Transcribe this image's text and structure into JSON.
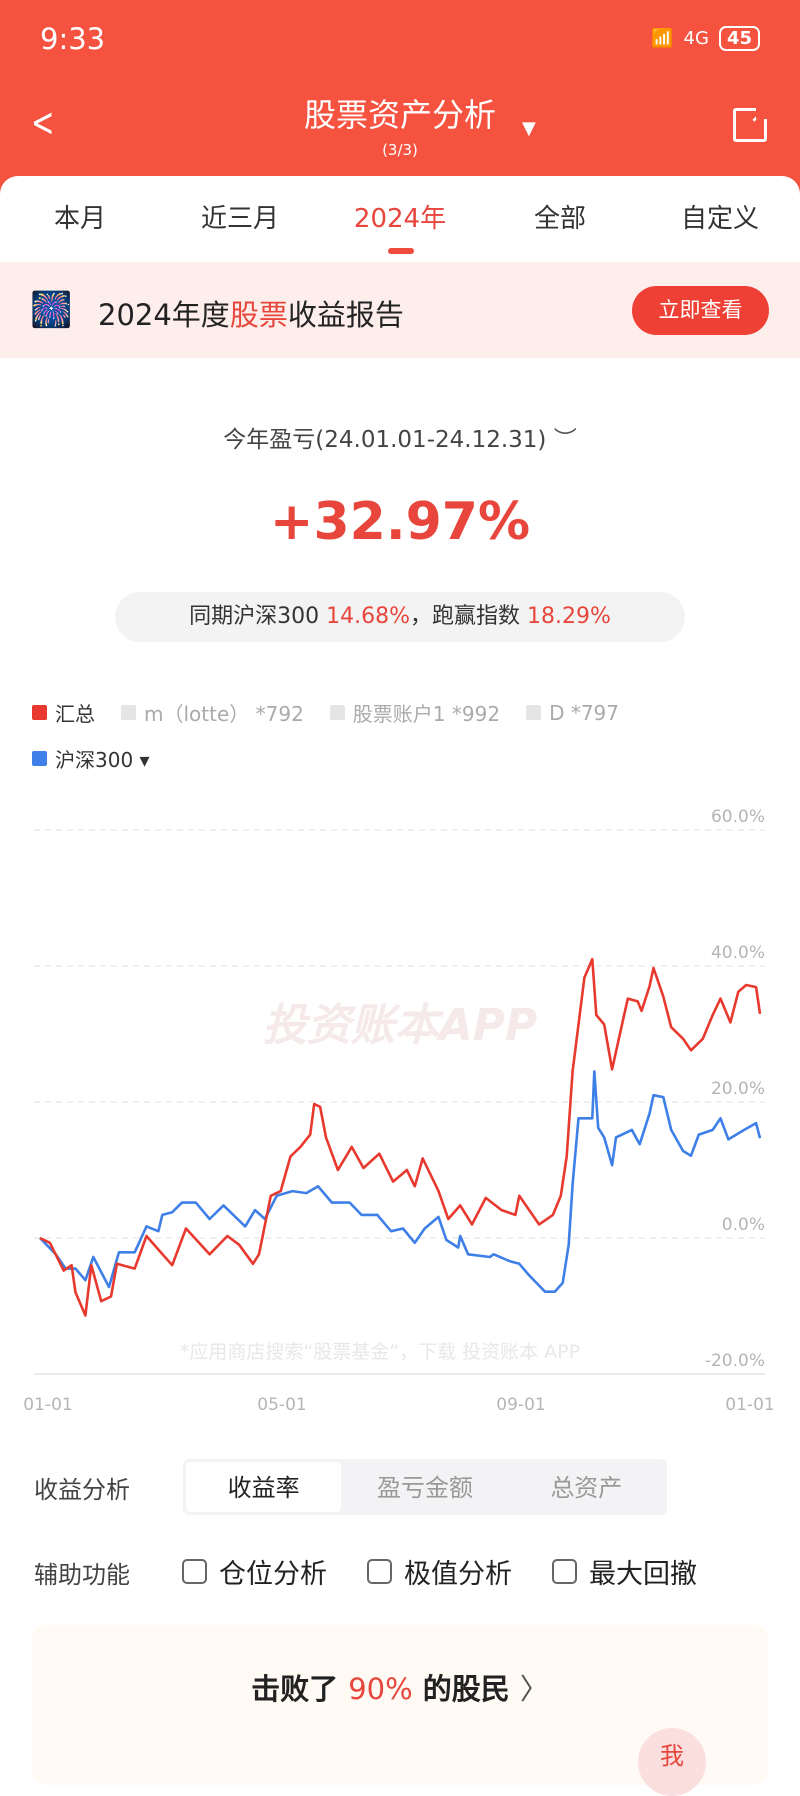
{
  "status": {
    "time": "9:33",
    "network": "4G",
    "battery": "45"
  },
  "header": {
    "title": "股票资产分析",
    "subtitle": "(3/3)"
  },
  "tabs": [
    "本月",
    "近三月",
    "2024年",
    "全部",
    "自定义"
  ],
  "banner": {
    "pre": "2024年度",
    "hl": "股票",
    "post": "收益报告",
    "button": "立即查看"
  },
  "summary": {
    "period": "今年盈亏(24.01.01-24.12.31)",
    "value": "+32.97%",
    "cmp_pre": "同期沪深300",
    "cmp_val": "14.68%",
    "cmp_mid": "，跑赢指数",
    "cmp_val2": "18.29%"
  },
  "legend": [
    {
      "name": "汇总",
      "color": "#e8392f",
      "active": true
    },
    {
      "name": "m（lotte） *792",
      "color": "#e5e5e5",
      "active": false
    },
    {
      "name": "股票账户1 *992",
      "color": "#e5e5e5",
      "active": false
    },
    {
      "name": "D *797",
      "color": "#e5e5e5",
      "active": false
    },
    {
      "name": "沪深300 ▾",
      "color": "#3f7fe8",
      "active": true
    }
  ],
  "watermark": "投资账本APP",
  "footnote": "*应用商店搜索“股票基金”，下载 投资账本 APP",
  "chart_data": {
    "type": "line",
    "ylim": [
      -20,
      60
    ],
    "yticks": [
      "60.0%",
      "40.0%",
      "20.0%",
      "0.0%",
      "-20.0%"
    ],
    "ytick_values": [
      60,
      40,
      20,
      0,
      -20
    ],
    "xticks": [
      "01-01",
      "05-01",
      "09-01",
      "01-01"
    ],
    "grid": true,
    "series": [
      {
        "name": "汇总",
        "color": "#e8392f",
        "x": [
          "01-01",
          "01-06",
          "01-13",
          "01-17",
          "01-19",
          "01-24",
          "01-27",
          "02-01",
          "02-06",
          "02-09",
          "02-18",
          "02-24",
          "03-01",
          "03-08",
          "03-15",
          "03-27",
          "04-05",
          "04-11",
          "04-18",
          "04-21",
          "04-27",
          "05-02",
          "05-07",
          "05-12",
          "05-17",
          "05-19",
          "05-22",
          "05-25",
          "05-31",
          "06-07",
          "06-13",
          "06-21",
          "06-28",
          "07-05",
          "07-09",
          "07-13",
          "07-21",
          "07-26",
          "08-01",
          "08-07",
          "08-14",
          "08-22",
          "08-29",
          "08-31",
          "09-05",
          "09-10",
          "09-17",
          "09-21",
          "09-24",
          "09-27",
          "10-03",
          "10-07",
          "10-09",
          "10-13",
          "10-17",
          "10-21",
          "10-25",
          "10-30",
          "11-01",
          "11-05",
          "11-07",
          "11-12",
          "11-16",
          "11-22",
          "11-26",
          "12-02",
          "12-07",
          "12-11",
          "12-16",
          "12-20",
          "12-24",
          "12-29",
          "12-31"
        ],
        "values": [
          0,
          -0.7,
          -4.8,
          -4,
          -8,
          -11.4,
          -4,
          -9.3,
          -8.6,
          -3.8,
          -4.5,
          0.3,
          -1.7,
          -4,
          1.4,
          -2.4,
          0.3,
          -1,
          -3.8,
          -2.4,
          6.2,
          6.9,
          12,
          13.4,
          15.2,
          19.7,
          19.3,
          14.8,
          10,
          13.4,
          10.3,
          12.4,
          8.3,
          10,
          7.6,
          11.7,
          6.9,
          2.8,
          4.8,
          2,
          5.9,
          4.1,
          3.4,
          6.2,
          4.1,
          2,
          3.4,
          6.2,
          12,
          24.5,
          38.3,
          41,
          32.8,
          31.4,
          24.8,
          30,
          35.2,
          34.8,
          33.4,
          37,
          39.7,
          35.5,
          31,
          29.3,
          27.6,
          29.3,
          32.8,
          35.2,
          31.7,
          36.2,
          37.2,
          36.9,
          32.97
        ]
      },
      {
        "name": "沪深300",
        "color": "#3f7fe8",
        "x": [
          "01-01",
          "01-09",
          "01-14",
          "01-19",
          "01-24",
          "01-28",
          "02-05",
          "02-10",
          "02-18",
          "02-24",
          "03-01",
          "03-03",
          "03-08",
          "03-13",
          "03-20",
          "03-27",
          "04-03",
          "04-14",
          "04-19",
          "04-24",
          "04-30",
          "05-08",
          "05-15",
          "05-21",
          "05-28",
          "06-06",
          "06-12",
          "06-20",
          "06-27",
          "07-03",
          "07-09",
          "07-14",
          "07-21",
          "07-25",
          "07-31",
          "08-01",
          "08-05",
          "08-16",
          "08-18",
          "08-26",
          "08-31",
          "09-05",
          "09-13",
          "09-18",
          "09-22",
          "09-25",
          "09-27",
          "09-30",
          "10-07",
          "10-08",
          "10-10",
          "10-13",
          "10-17",
          "10-19",
          "10-27",
          "10-31",
          "11-05",
          "11-07",
          "11-12",
          "11-16",
          "11-22",
          "11-26",
          "11-30",
          "12-07",
          "12-11",
          "12-15",
          "12-23",
          "12-29",
          "12-31"
        ],
        "values": [
          0,
          -2.4,
          -4.5,
          -4.5,
          -6.2,
          -2.8,
          -7.2,
          -2.1,
          -2.1,
          1.7,
          1,
          3.4,
          3.8,
          5.2,
          5.2,
          2.8,
          4.8,
          1.7,
          4.1,
          2.8,
          6.2,
          6.9,
          6.6,
          7.6,
          5.2,
          5.2,
          3.4,
          3.4,
          1,
          1.4,
          -0.7,
          1.4,
          3.1,
          -0.3,
          -1.4,
          0.3,
          -2.4,
          -2.8,
          -2.4,
          -3.4,
          -3.8,
          -5.5,
          -7.9,
          -7.9,
          -6.6,
          -1,
          7.9,
          17.6,
          17.6,
          24.5,
          16.2,
          14.8,
          10.7,
          14.8,
          15.9,
          13.8,
          18.3,
          21,
          20.7,
          15.9,
          12.8,
          12.1,
          15.2,
          15.9,
          17.6,
          14.5,
          15.9,
          16.9,
          14.68
        ]
      }
    ]
  },
  "analysis": {
    "label": "收益分析",
    "options": [
      "收益率",
      "盈亏金额",
      "总资产"
    ],
    "selected": 0
  },
  "aux": {
    "label": "辅助功能",
    "options": [
      "仓位分析",
      "极值分析",
      "最大回撤"
    ]
  },
  "beat": {
    "pre": "击败了 ",
    "pct": "90%",
    "post": " 的股民"
  },
  "me": "我"
}
